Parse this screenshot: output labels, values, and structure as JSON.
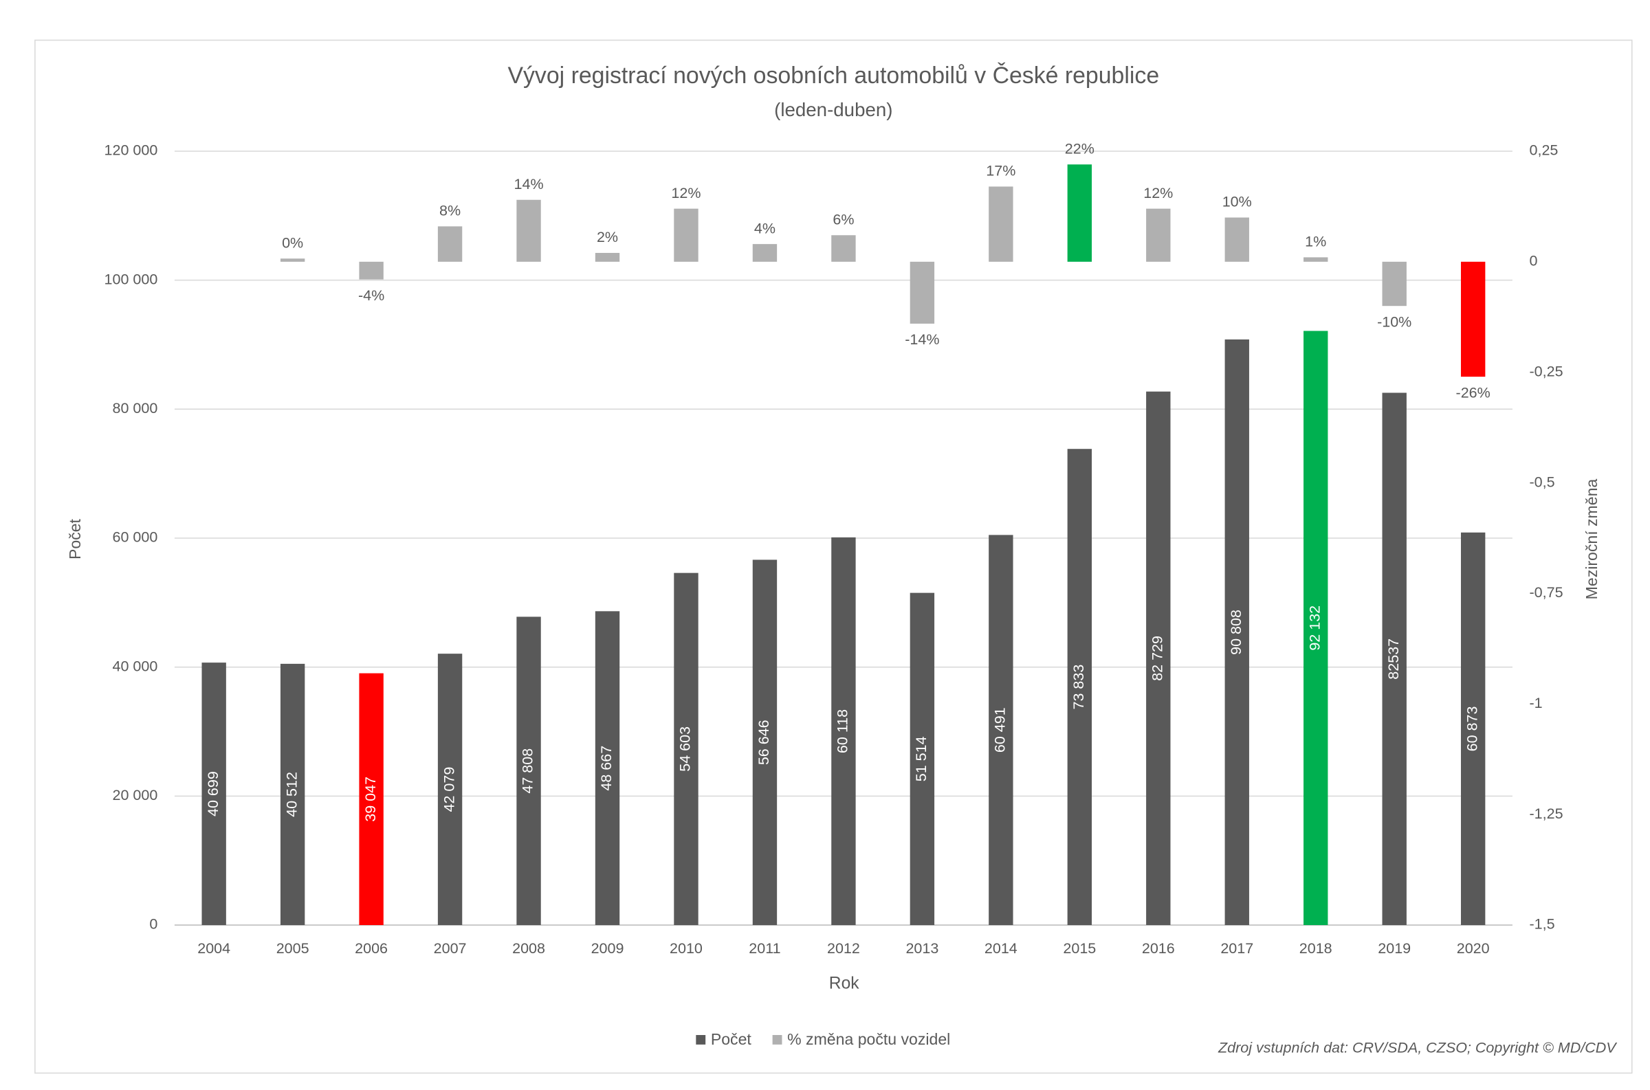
{
  "chart_data": {
    "type": "bar",
    "title": "Vývoj registrací nových osobních automobilů v České republice",
    "subtitle": "(leden-duben)",
    "x_label": "Rok",
    "y_label": "Počet",
    "y2_label": "Meziroční změna",
    "source": "Zdroj vstupních dat: CRV/SDA, CZSO; Copyright © MD/CDV",
    "categories": [
      "2004",
      "2005",
      "2006",
      "2007",
      "2008",
      "2009",
      "2010",
      "2011",
      "2012",
      "2013",
      "2014",
      "2015",
      "2016",
      "2017",
      "2018",
      "2019",
      "2020"
    ],
    "series": [
      {
        "name": "Počet",
        "color": "#595959",
        "colors": [
          "#595959",
          "#595959",
          "#ff0000",
          "#595959",
          "#595959",
          "#595959",
          "#595959",
          "#595959",
          "#595959",
          "#595959",
          "#595959",
          "#595959",
          "#595959",
          "#595959",
          "#00b050",
          "#595959",
          "#595959"
        ],
        "values": [
          40699,
          40512,
          39047,
          42079,
          47808,
          48667,
          54603,
          56646,
          60118,
          51514,
          60491,
          73833,
          82729,
          90808,
          92132,
          82537,
          60873
        ],
        "value_labels": [
          "40 699",
          "40 512",
          "39 047",
          "42 079",
          "47 808",
          "48 667",
          "54 603",
          "56 646",
          "60 118",
          "51 514",
          "60 491",
          "73 833",
          "82 729",
          "90 808",
          "92 132",
          "82537",
          "60 873"
        ]
      },
      {
        "name": "% změna počtu vozidel",
        "color": "#b0b0b0",
        "axis": "y2",
        "colors": [
          "#b0b0b0",
          "#b0b0b0",
          "#b0b0b0",
          "#b0b0b0",
          "#b0b0b0",
          "#b0b0b0",
          "#b0b0b0",
          "#b0b0b0",
          "#b0b0b0",
          "#b0b0b0",
          "#b0b0b0",
          "#00b050",
          "#b0b0b0",
          "#b0b0b0",
          "#b0b0b0",
          "#b0b0b0",
          "#ff0000"
        ],
        "values": [
          null,
          0,
          -0.04,
          0.08,
          0.14,
          0.02,
          0.12,
          0.04,
          0.06,
          -0.14,
          0.17,
          0.22,
          0.12,
          0.1,
          0.01,
          -0.1,
          -0.26
        ],
        "value_labels": [
          null,
          "0%",
          "-4%",
          "8%",
          "14%",
          "2%",
          "12%",
          "4%",
          "6%",
          "-14%",
          "17%",
          "22%",
          "12%",
          "10%",
          "1%",
          "-10%",
          "-26%"
        ]
      }
    ],
    "ylim": [
      0,
      120000
    ],
    "yticks": [
      0,
      {
        "value": 20000,
        "label": "20 000"
      },
      {
        "value": 40000,
        "label": "40 000"
      },
      {
        "value": 60000,
        "label": "60 000"
      },
      {
        "value": 80000,
        "label": "80 000"
      },
      {
        "value": 100000,
        "label": "100 000"
      },
      {
        "value": 120000,
        "label": "120 000"
      }
    ],
    "y2lim": [
      -1.5,
      0.25
    ],
    "y2ticks": [
      {
        "value": -1.5,
        "label": "-1,5"
      },
      {
        "value": -1.25,
        "label": "-1,25"
      },
      -1,
      {
        "value": -0.75,
        "label": "-0,75"
      },
      {
        "value": -0.5,
        "label": "-0,5"
      },
      {
        "value": -0.25,
        "label": "-0,25"
      },
      0,
      {
        "value": 0.25,
        "label": "0,25"
      }
    ],
    "grid": true,
    "legend": "bottom"
  }
}
